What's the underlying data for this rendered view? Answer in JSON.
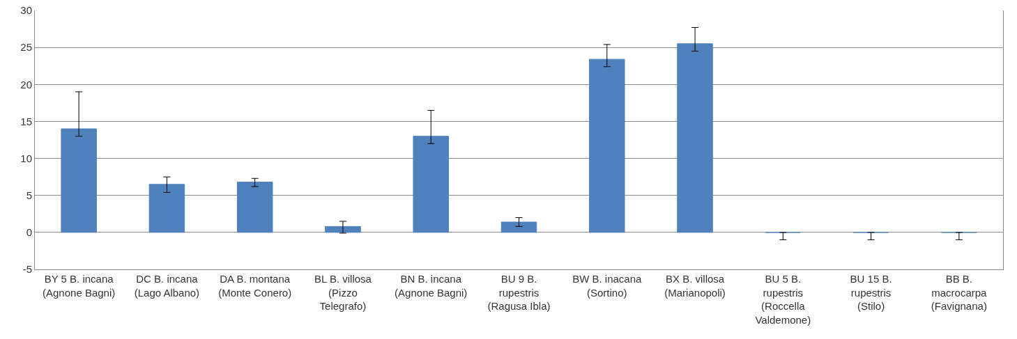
{
  "chart_data": {
    "type": "bar",
    "categories": [
      "BY 5 B. incana (Agnone Bagni)",
      "DC B. incana (Lago Albano)",
      "DA B. montana (Monte Conero)",
      "BL B. villosa (Pizzo Telegrafo)",
      "BN B. incana (Agnone Bagni)",
      "BU 9 B. rupestris (Ragusa Ibla)",
      "BW B. inacana (Sortino)",
      "BX B. villosa (Marianopoli)",
      "BU 5 B. rupestris (Roccella Valdemone)",
      "BU 15 B. rupestris (Stilo)",
      "BB B. macrocarpa (Favignana)"
    ],
    "values": [
      14,
      6.5,
      6.8,
      0.8,
      13,
      1.4,
      23.4,
      25.5,
      0,
      0,
      0
    ],
    "errors": [
      [
        13,
        19
      ],
      [
        5.4,
        7.5
      ],
      [
        6.2,
        7.3
      ],
      [
        -0.1,
        1.5
      ],
      [
        12,
        16.5
      ],
      [
        0.8,
        2
      ],
      [
        22.4,
        25.4
      ],
      [
        24.5,
        27.7
      ],
      [
        -1,
        0
      ],
      [
        -1,
        0
      ],
      [
        -1,
        0
      ]
    ],
    "color": "#4f81bd",
    "ylim": [
      -5,
      30
    ],
    "yticks": [
      -5,
      0,
      5,
      10,
      15,
      20,
      25,
      30
    ],
    "grid": "y"
  }
}
